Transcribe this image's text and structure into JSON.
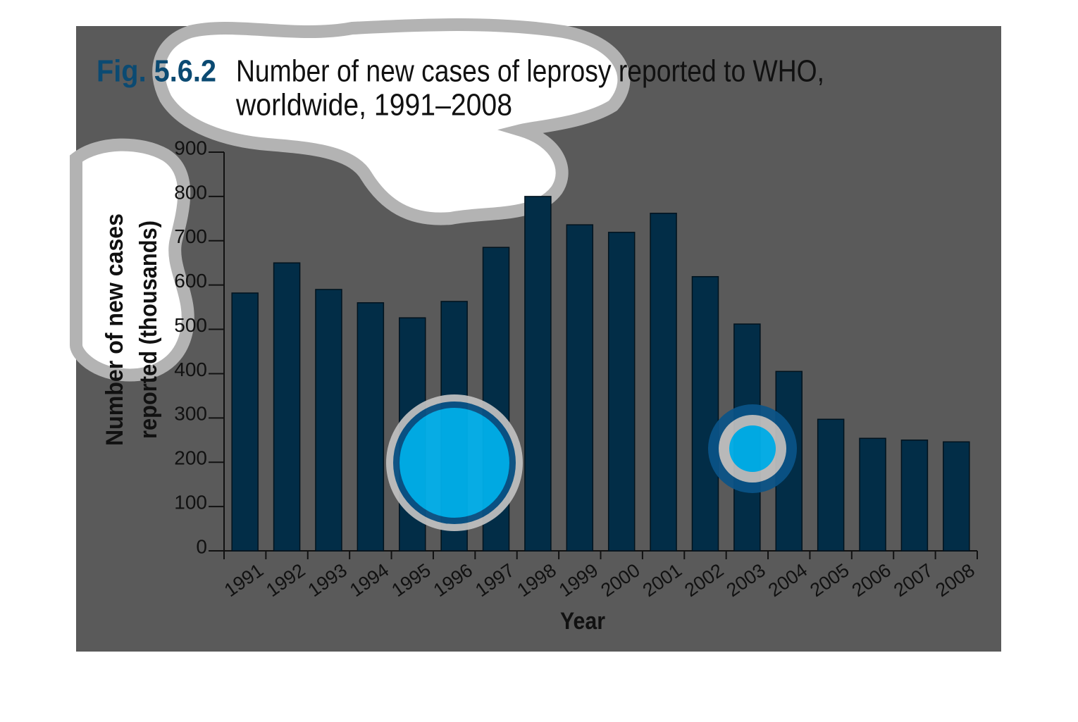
{
  "chart_data": {
    "type": "bar",
    "figure_label": "Fig. 5.6.2",
    "title_lines": [
      "Number of new cases of leprosy reported to WHO,",
      "worldwide, 1991–2008"
    ],
    "y_label_lines": [
      "Number of new cases",
      "reported (thousands)"
    ],
    "x_label": "Year",
    "categories": [
      "1991",
      "1992",
      "1993",
      "1994",
      "1995",
      "1996",
      "1997",
      "1998",
      "1999",
      "2000",
      "2001",
      "2002",
      "2003",
      "2004",
      "2005",
      "2006",
      "2007",
      "2008"
    ],
    "values": [
      582,
      650,
      590,
      560,
      526,
      563,
      685,
      800,
      736,
      719,
      762,
      619,
      512,
      405,
      297,
      254,
      250,
      246
    ],
    "color": "#022d47",
    "ylim": [
      0,
      900
    ],
    "yticks": [
      0,
      100,
      200,
      300,
      400,
      500,
      600,
      700,
      800,
      900
    ],
    "grid": false
  }
}
